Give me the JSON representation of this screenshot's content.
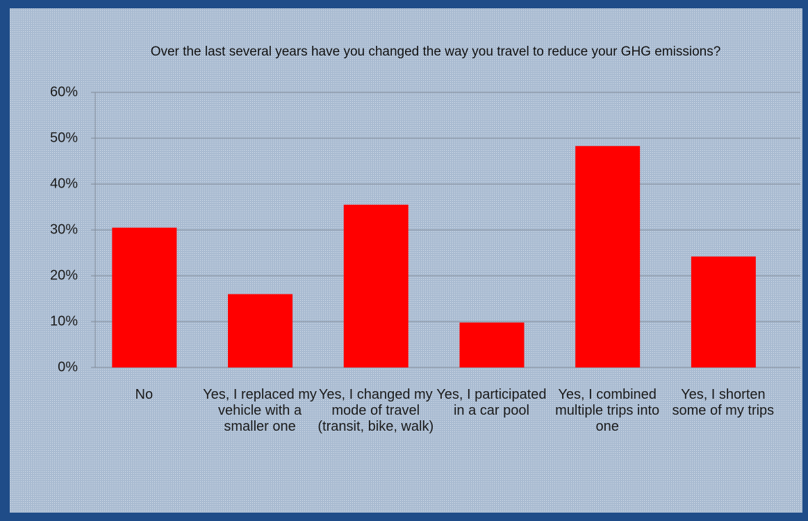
{
  "chart_data": {
    "type": "bar",
    "title": "Over the last several years have you changed the way you travel to reduce your GHG emissions?",
    "categories": [
      "No",
      "Yes, I replaced my vehicle with a smaller one",
      "Yes, I changed my mode of travel (transit, bike, walk)",
      "Yes, I participated in a car pool",
      "Yes, I combined multiple trips into one",
      "Yes, I shorten some of my trips"
    ],
    "values": [
      30.5,
      16,
      35.5,
      9.8,
      48.3,
      24.2
    ],
    "color": "#ff0000",
    "ylim": [
      0,
      60
    ],
    "yticks": [
      {
        "value": 0,
        "label": "0%"
      },
      {
        "value": 10,
        "label": "10%"
      },
      {
        "value": 20,
        "label": "20%"
      },
      {
        "value": 30,
        "label": "30%"
      },
      {
        "value": 40,
        "label": "40%"
      },
      {
        "value": 50,
        "label": "50%"
      },
      {
        "value": 60,
        "label": "60%"
      }
    ],
    "grid": true
  }
}
